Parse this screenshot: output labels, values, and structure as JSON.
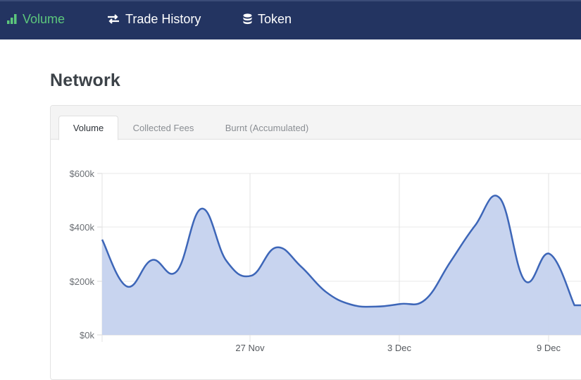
{
  "nav": {
    "items": [
      {
        "label": "Volume",
        "icon": "bar-chart-icon",
        "active": true
      },
      {
        "label": "Trade History",
        "icon": "swap-arrows-icon",
        "active": false
      },
      {
        "label": "Token",
        "icon": "database-icon",
        "active": false
      }
    ]
  },
  "page": {
    "title": "Network"
  },
  "tabs": [
    {
      "label": "Volume",
      "active": true
    },
    {
      "label": "Collected Fees",
      "active": false
    },
    {
      "label": "Burnt (Accumulated)",
      "active": false
    }
  ],
  "colors": {
    "nav_bg": "#233461",
    "nav_active": "#5cc77c",
    "line": "#3d66b8",
    "fill": "#c5d2ee"
  },
  "chart_data": {
    "type": "area",
    "title": "Volume",
    "xlabel": "",
    "ylabel": "",
    "ylim": [
      0,
      600000
    ],
    "y_ticks": [
      "$0k",
      "$200k",
      "$400k",
      "$600k"
    ],
    "x_ticks": [
      "27 Nov",
      "3 Dec",
      "9 Dec"
    ],
    "grid": true,
    "x": [
      "21 Nov",
      "22 Nov",
      "23 Nov",
      "24 Nov",
      "25 Nov",
      "26 Nov",
      "27 Nov",
      "28 Nov",
      "29 Nov",
      "30 Nov",
      "1 Dec",
      "2 Dec",
      "3 Dec",
      "4 Dec",
      "5 Dec",
      "6 Dec",
      "7 Dec",
      "8 Dec",
      "9 Dec",
      "10 Dec"
    ],
    "series": [
      {
        "name": "Volume",
        "values": [
          354000,
          180000,
          278000,
          236000,
          469000,
          275000,
          220000,
          325000,
          254000,
          160000,
          113000,
          105000,
          115000,
          131000,
          270000,
          406000,
          508000,
          202000,
          301000,
          110000
        ]
      }
    ]
  }
}
